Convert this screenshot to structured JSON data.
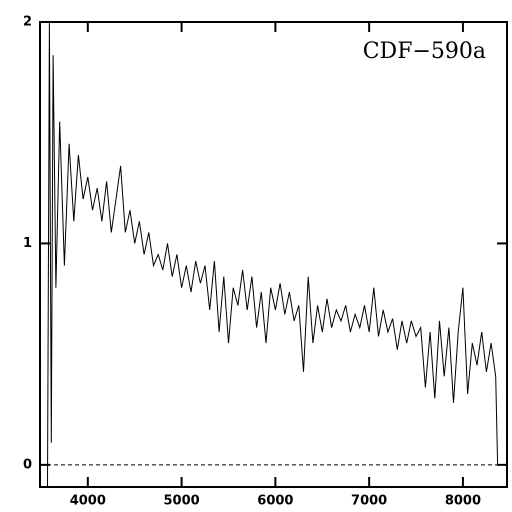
{
  "chart_data": {
    "type": "line",
    "annotation": "CDF−590a",
    "x": [
      3570,
      3590,
      3610,
      3630,
      3660,
      3700,
      3750,
      3800,
      3850,
      3900,
      3950,
      4000,
      4050,
      4100,
      4150,
      4200,
      4250,
      4300,
      4350,
      4400,
      4450,
      4500,
      4550,
      4600,
      4650,
      4700,
      4750,
      4800,
      4850,
      4900,
      4950,
      5000,
      5050,
      5100,
      5150,
      5200,
      5250,
      5300,
      5350,
      5400,
      5450,
      5500,
      5550,
      5600,
      5650,
      5700,
      5750,
      5800,
      5850,
      5900,
      5950,
      6000,
      6050,
      6100,
      6150,
      6200,
      6250,
      6300,
      6350,
      6400,
      6450,
      6500,
      6550,
      6600,
      6650,
      6700,
      6750,
      6800,
      6850,
      6900,
      6950,
      7000,
      7050,
      7100,
      7150,
      7200,
      7250,
      7300,
      7350,
      7400,
      7450,
      7500,
      7550,
      7600,
      7650,
      7700,
      7750,
      7800,
      7850,
      7900,
      7950,
      8000,
      8050,
      8100,
      8150,
      8200,
      8250,
      8300,
      8350,
      8370
    ],
    "series": [
      {
        "color": "#000000",
        "values": [
          -0.1,
          2,
          0.1,
          1.85,
          0.8,
          1.55,
          0.9,
          1.45,
          1.1,
          1.4,
          1.2,
          1.3,
          1.15,
          1.25,
          1.1,
          1.28,
          1.05,
          1.2,
          1.35,
          1.05,
          1.15,
          1.0,
          1.1,
          0.95,
          1.05,
          0.9,
          0.95,
          0.88,
          1.0,
          0.85,
          0.95,
          0.8,
          0.9,
          0.78,
          0.92,
          0.82,
          0.9,
          0.7,
          0.92,
          0.6,
          0.85,
          0.55,
          0.8,
          0.72,
          0.88,
          0.7,
          0.85,
          0.62,
          0.78,
          0.55,
          0.8,
          0.7,
          0.82,
          0.68,
          0.78,
          0.65,
          0.72,
          0.42,
          0.85,
          0.55,
          0.72,
          0.6,
          0.75,
          0.62,
          0.7,
          0.65,
          0.72,
          0.6,
          0.68,
          0.62,
          0.72,
          0.6,
          0.8,
          0.58,
          0.7,
          0.6,
          0.66,
          0.52,
          0.65,
          0.55,
          0.65,
          0.58,
          0.62,
          0.35,
          0.6,
          0.3,
          0.65,
          0.4,
          0.62,
          0.28,
          0.6,
          0.8,
          0.32,
          0.55,
          0.45,
          0.6,
          0.42,
          0.55,
          0.4,
          0
        ]
      }
    ],
    "reference_line": 0,
    "xlim": [
      3490,
      8470
    ],
    "xticks": [
      4000,
      5000,
      6000,
      7000,
      8000
    ],
    "ylim": [
      -0.1,
      2
    ],
    "yticks": [
      0,
      1,
      2
    ]
  }
}
